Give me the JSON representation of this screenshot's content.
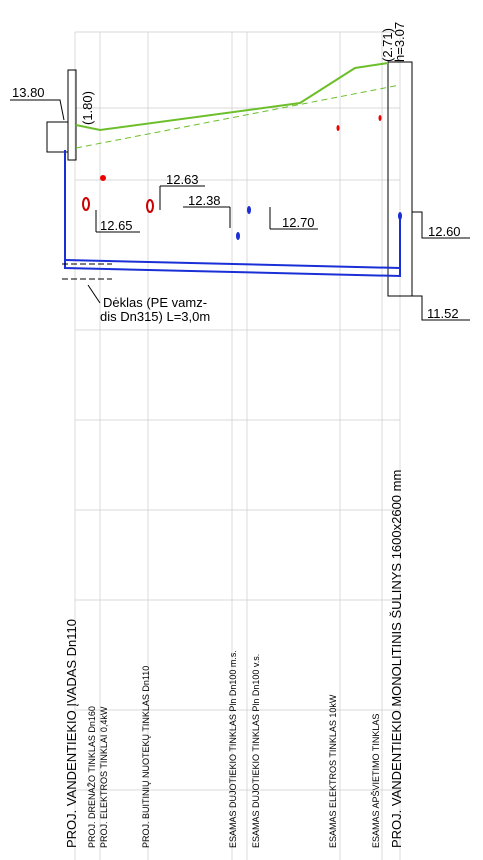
{
  "levels": {
    "top_left": "13.80",
    "left_depth": "(1.80)",
    "right_depth": "(2.71)",
    "right_h": "h=3.07",
    "l1": "12.63",
    "l2": "12.38",
    "l3": "12.65",
    "l4": "12.70",
    "l5": "12.60",
    "l6": "11.52"
  },
  "sleeve": [
    "Dėklas (PE vamz-",
    "dis Dn315) L=3,0m"
  ],
  "networks": [
    "PROJ. VANDENTIEKIO ĮVADAS Dn110",
    "PROJ. DRENAŽO TINKLAS Dn160",
    "PROJ. ELEKTROS TINKLAI 0,4kW",
    "PROJ. BUITINIŲ NUOTEKŲ TINKLAS Dn110",
    "ESAMAS DUJOTIEKIO TINKLAS Pln Dn100 m.s.",
    "ESAMAS DUJOTIEKIO TINKLAS Pln Dn100 v.s.",
    "ESAMAS ELEKTROS TINKLAS 10kW",
    "ESAMAS APŠVIETIMO TINKLAS",
    "PROJ. VANDENTIEKIO MONOLITINIS ŠULINYS 1600x2600 mm"
  ]
}
